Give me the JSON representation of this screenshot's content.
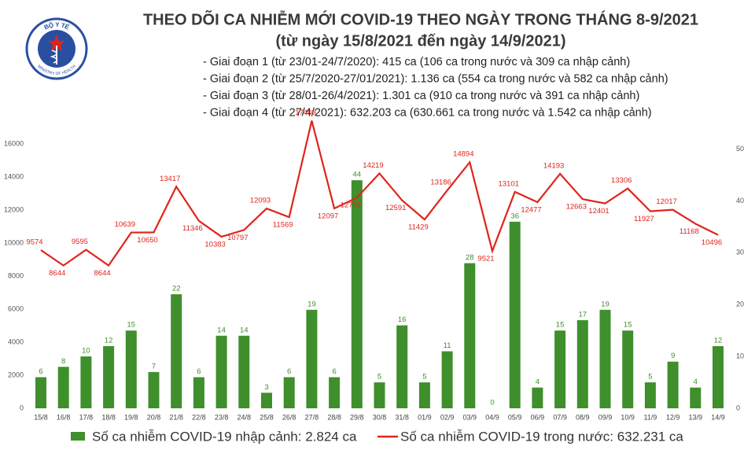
{
  "logo": {
    "top": "BỘ Y TẾ",
    "bottom": "MINISTRY OF HEALTH"
  },
  "chart_data": {
    "type": "combo",
    "title": "THEO DÕI CA NHIỄM MỚI COVID-19 THEO NGÀY TRONG THÁNG 8-9/2021",
    "subtitle": "(từ ngày 15/8/2021 đến ngày 14/9/2021)",
    "annotations": [
      "- Giai đoạn 1 (từ 23/01-24/7/2020): 415 ca (106 ca trong nước và 309 ca nhập cảnh)",
      "- Giai đoạn 2 (từ 25/7/2020-27/01/2021): 1.136 ca (554 ca trong nước và 582 ca nhập cảnh)",
      "- Giai đoạn 3 (từ 28/01-26/4/2021): 1.301 ca (910 ca trong nước và 391 ca nhập cảnh)",
      "- Giai đoạn 4 (từ 27/4/2021): 632.203 ca (630.661 ca trong nước và 1.542 ca nhập cảnh)"
    ],
    "categories": [
      "15/8",
      "16/8",
      "17/8",
      "18/8",
      "19/8",
      "20/8",
      "21/8",
      "22/8",
      "23/8",
      "24/8",
      "25/8",
      "26/8",
      "27/8",
      "28/8",
      "29/8",
      "30/8",
      "31/8",
      "01/9",
      "02/9",
      "03/9",
      "04/9",
      "05/9",
      "06/9",
      "07/9",
      "08/9",
      "09/9",
      "10/9",
      "11/9",
      "12/9",
      "13/9",
      "14/9"
    ],
    "series": [
      {
        "name": "Số ca nhiễm COVID-19 nhập cảnh: 2.824 ca",
        "type": "bar",
        "axis": "y2",
        "color": "#3f8f2c",
        "values": [
          6,
          8,
          10,
          12,
          15,
          7,
          22,
          6,
          14,
          14,
          3,
          6,
          19,
          6,
          44,
          5,
          16,
          5,
          11,
          28,
          0,
          36,
          4,
          15,
          17,
          19,
          15,
          5,
          9,
          4,
          12
        ]
      },
      {
        "name": "Số ca nhiễm COVID-19 trong nước: 632.231 ca",
        "type": "line",
        "color": "#e0241b",
        "values": [
          9574,
          8644,
          9595,
          8644,
          10639,
          10650,
          13417,
          11346,
          10383,
          10797,
          12093,
          11569,
          17409,
          12097,
          12752,
          14219,
          12591,
          11429,
          13186,
          14894,
          9521,
          13101,
          12477,
          14193,
          12663,
          12401,
          13306,
          11927,
          12017,
          11168,
          10496
        ]
      }
    ],
    "ylim": [
      0,
      16000
    ],
    "yticks": [
      0,
      2000,
      4000,
      6000,
      8000,
      10000,
      12000,
      14000,
      16000
    ],
    "y2lim": [
      0,
      51
    ],
    "y2ticks": [
      0,
      10,
      20,
      30,
      40,
      50
    ],
    "grid": false
  }
}
